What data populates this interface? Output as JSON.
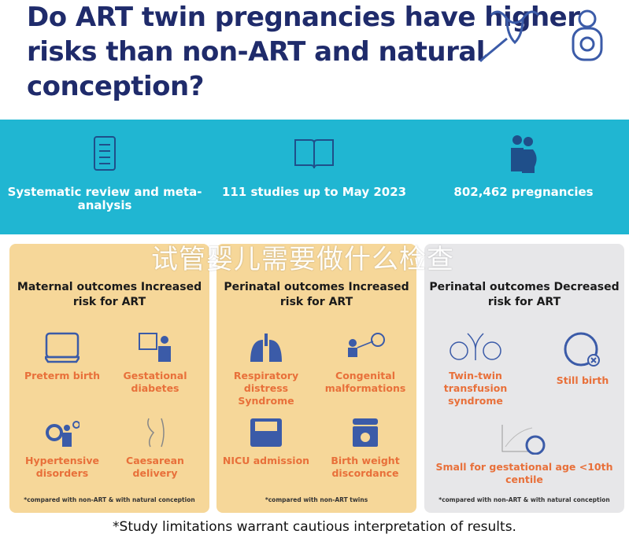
{
  "title": "Do ART twin pregnancies have higher risks than non-ART and natural conception?",
  "colors": {
    "title": "#1f2b6b",
    "band": "#20b6d2",
    "card": "#f6d799",
    "card_gray": "#e7e7e9",
    "label": "#e8703a",
    "icon": "#3b5ba8"
  },
  "stats": [
    {
      "icon": "clipboard-checklist-icon",
      "text": "Systematic review and meta-analysis"
    },
    {
      "icon": "open-book-icon",
      "text": "111 studies up to May 2023"
    },
    {
      "icon": "pregnant-women-icon",
      "text": "802,462 pregnancies"
    }
  ],
  "cards": [
    {
      "heading": "Maternal outcomes Increased risk for ART",
      "items": [
        {
          "icon": "incubator-icon",
          "label": "Preterm birth"
        },
        {
          "icon": "glucose-monitor-icon",
          "label": "Gestational diabetes"
        },
        {
          "icon": "blood-pressure-icon",
          "label": "Hypertensive disorders"
        },
        {
          "icon": "caesarean-icon",
          "label": "Caesarean delivery"
        }
      ],
      "note": "*compared with non-ART & with natural conception"
    },
    {
      "heading": "Perinatal outcomes Increased risk for ART",
      "items": [
        {
          "icon": "lungs-icon",
          "label": "Respiratory distress Syndrome"
        },
        {
          "icon": "baby-heart-icon",
          "label": "Congenital malformations"
        },
        {
          "icon": "nicu-incubator-icon",
          "label": "NICU admission"
        },
        {
          "icon": "baby-scale-icon",
          "label": "Birth weight discordance"
        }
      ],
      "note": "*compared with non-ART twins"
    },
    {
      "heading": "Perinatal outcomes Decreased risk for ART",
      "items": [
        {
          "icon": "twin-fetuses-icon",
          "label": "Twin-twin transfusion syndrome"
        },
        {
          "icon": "fetus-cross-icon",
          "label": "Still birth"
        },
        {
          "icon": "growth-chart-fetus-icon",
          "label": "Small for gestational age <10th centile"
        }
      ],
      "note": "*compared with non-ART & with natural conception"
    }
  ],
  "footer": "*Study limitations warrant cautious interpretation of results.",
  "watermark": "试管婴儿需要做什么检查"
}
